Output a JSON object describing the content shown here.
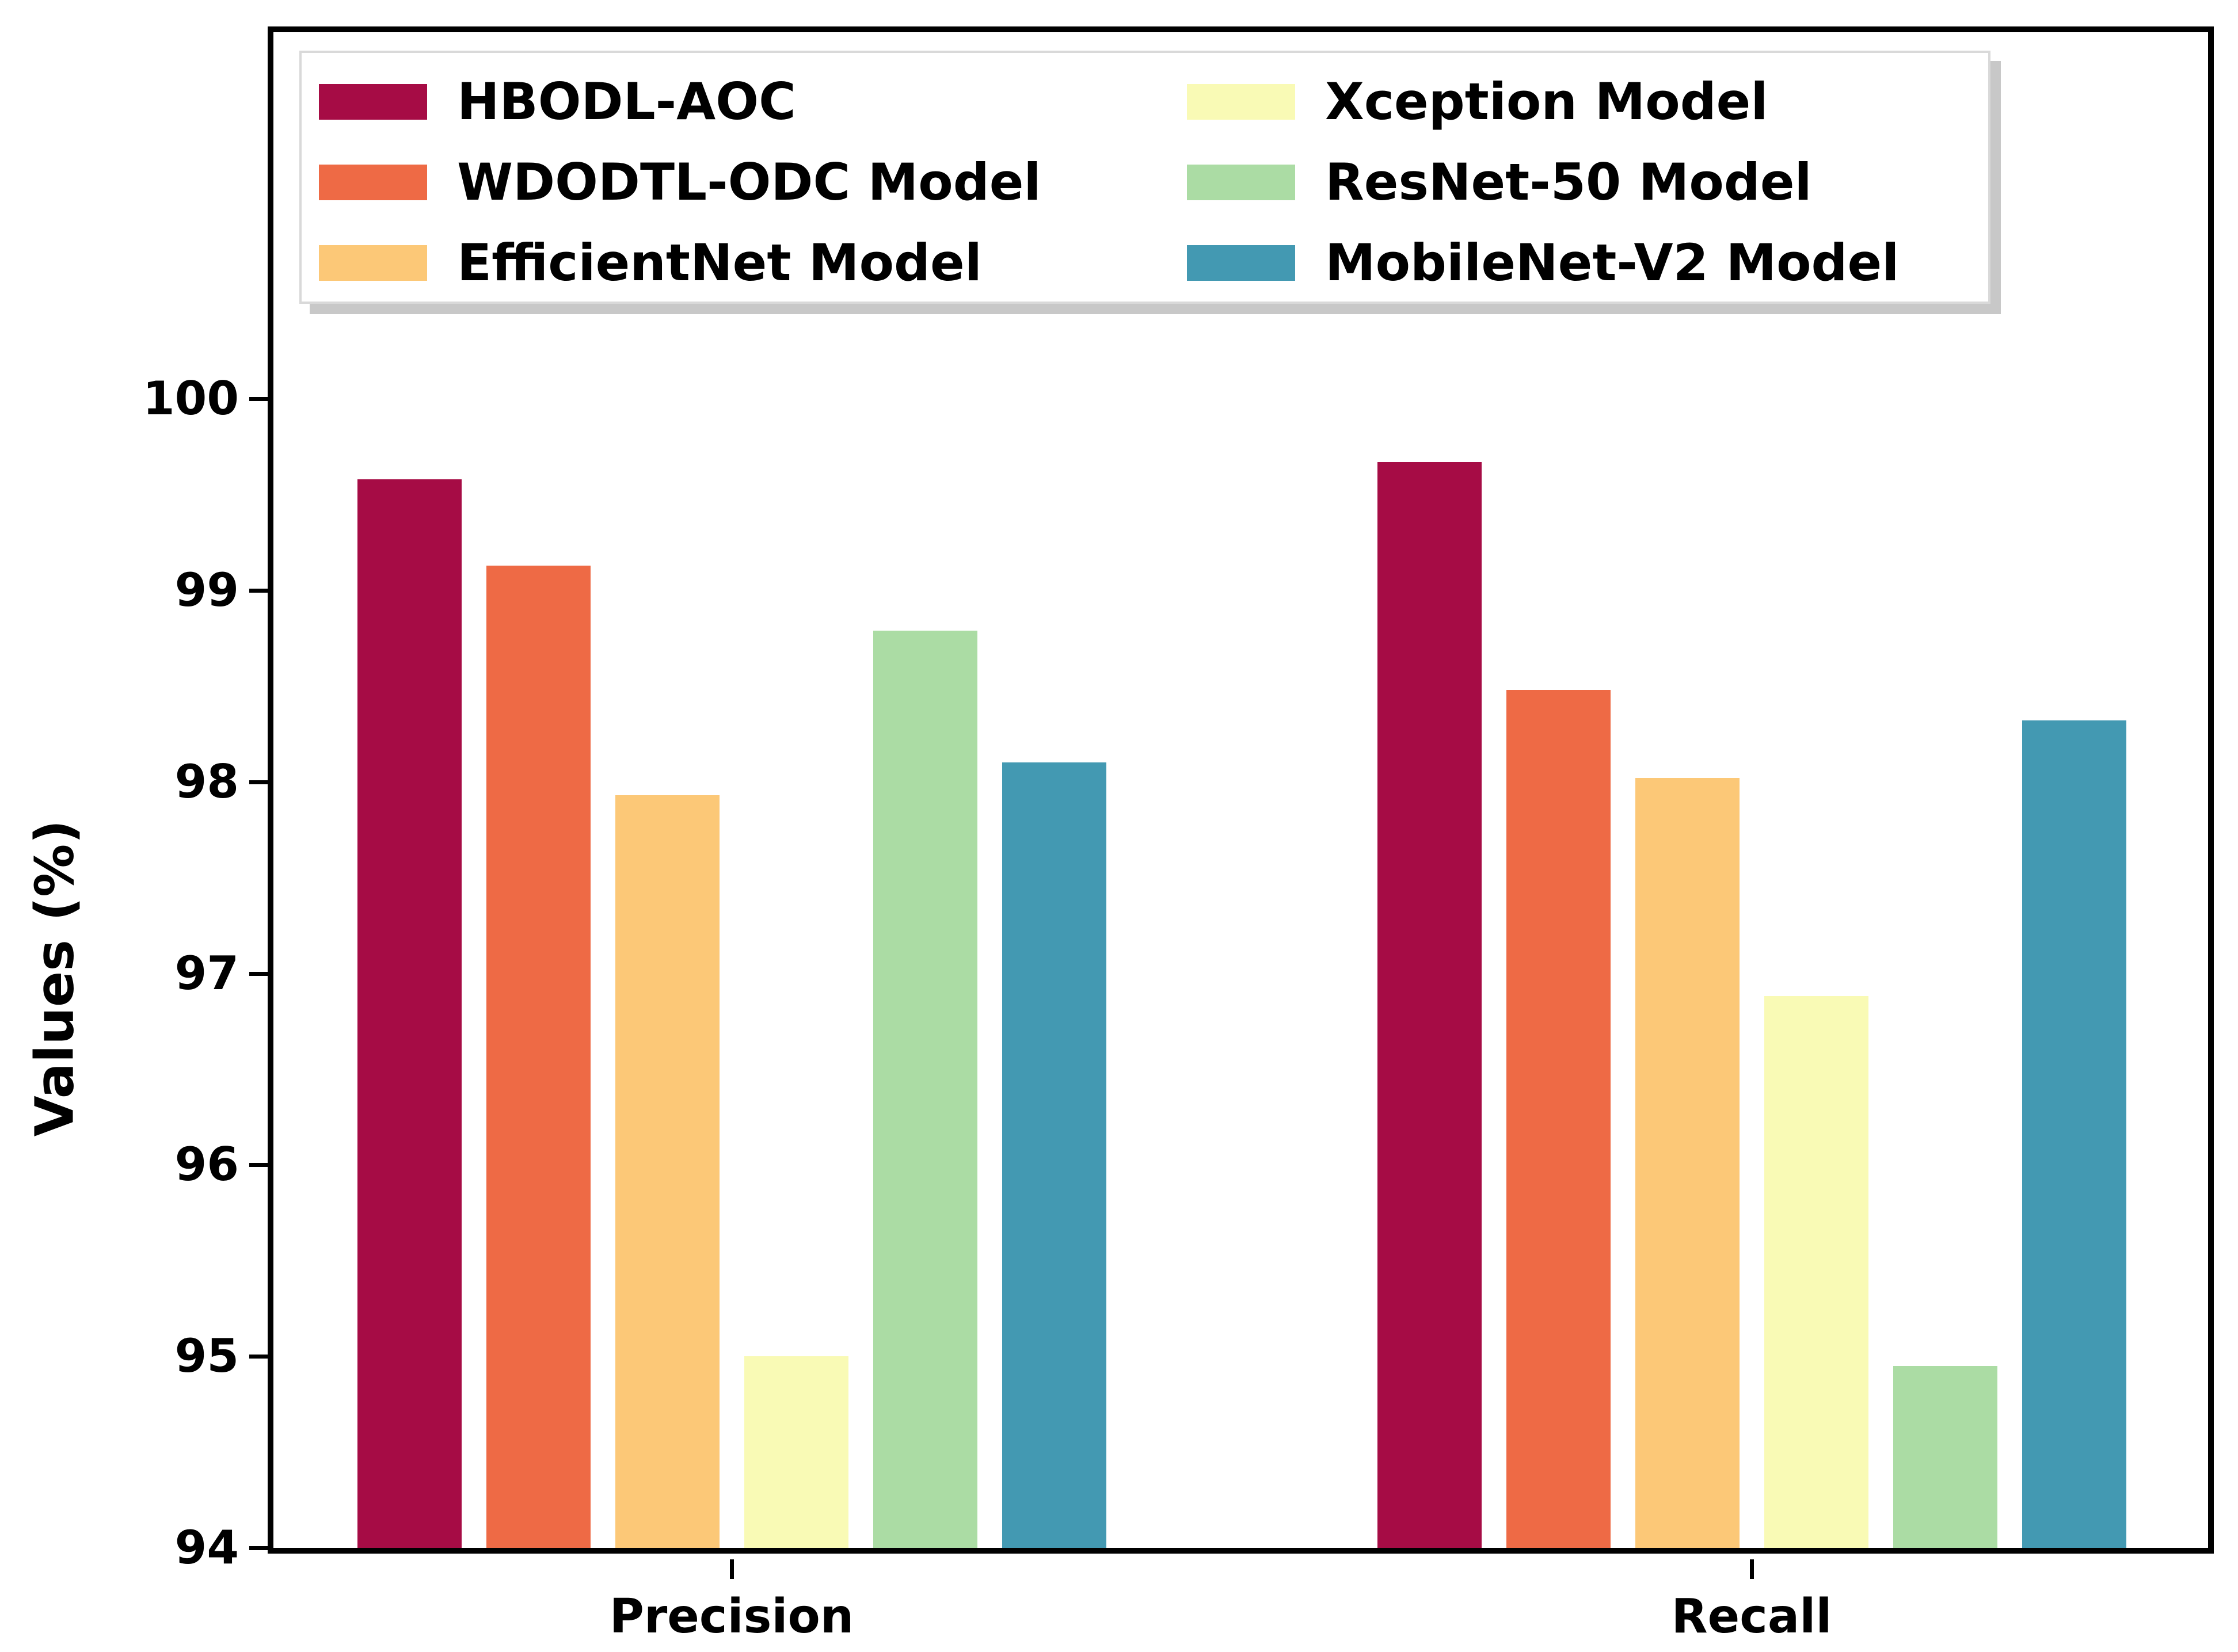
{
  "chart_data": {
    "type": "bar",
    "title": "",
    "categories": [
      "Precision",
      "Recall"
    ],
    "series": [
      {
        "name": "HBODL-AOC",
        "color": "#A60C45",
        "values": [
          99.58,
          99.67
        ]
      },
      {
        "name": "WDODTL-ODC Model",
        "color": "#EE6A45",
        "values": [
          99.13,
          98.48
        ]
      },
      {
        "name": "EfficientNet Model",
        "color": "#FCC877",
        "values": [
          97.93,
          98.02
        ]
      },
      {
        "name": "Xception Model",
        "color": "#F9FAB5",
        "values": [
          95.0,
          96.88
        ]
      },
      {
        "name": "ResNet-50 Model",
        "color": "#ABDCA4",
        "values": [
          98.79,
          94.95
        ]
      },
      {
        "name": "MobileNet-V2 Model",
        "color": "#4399B2",
        "values": [
          98.1,
          98.32
        ]
      }
    ],
    "xlabel": "",
    "ylabel": "Values (%)",
    "ylim": [
      94,
      101.9
    ],
    "yticks": [
      94,
      95,
      96,
      97,
      98,
      99,
      100
    ],
    "grid": false,
    "legend_position": "upper-center-inside, 2 columns, shadowed box"
  }
}
